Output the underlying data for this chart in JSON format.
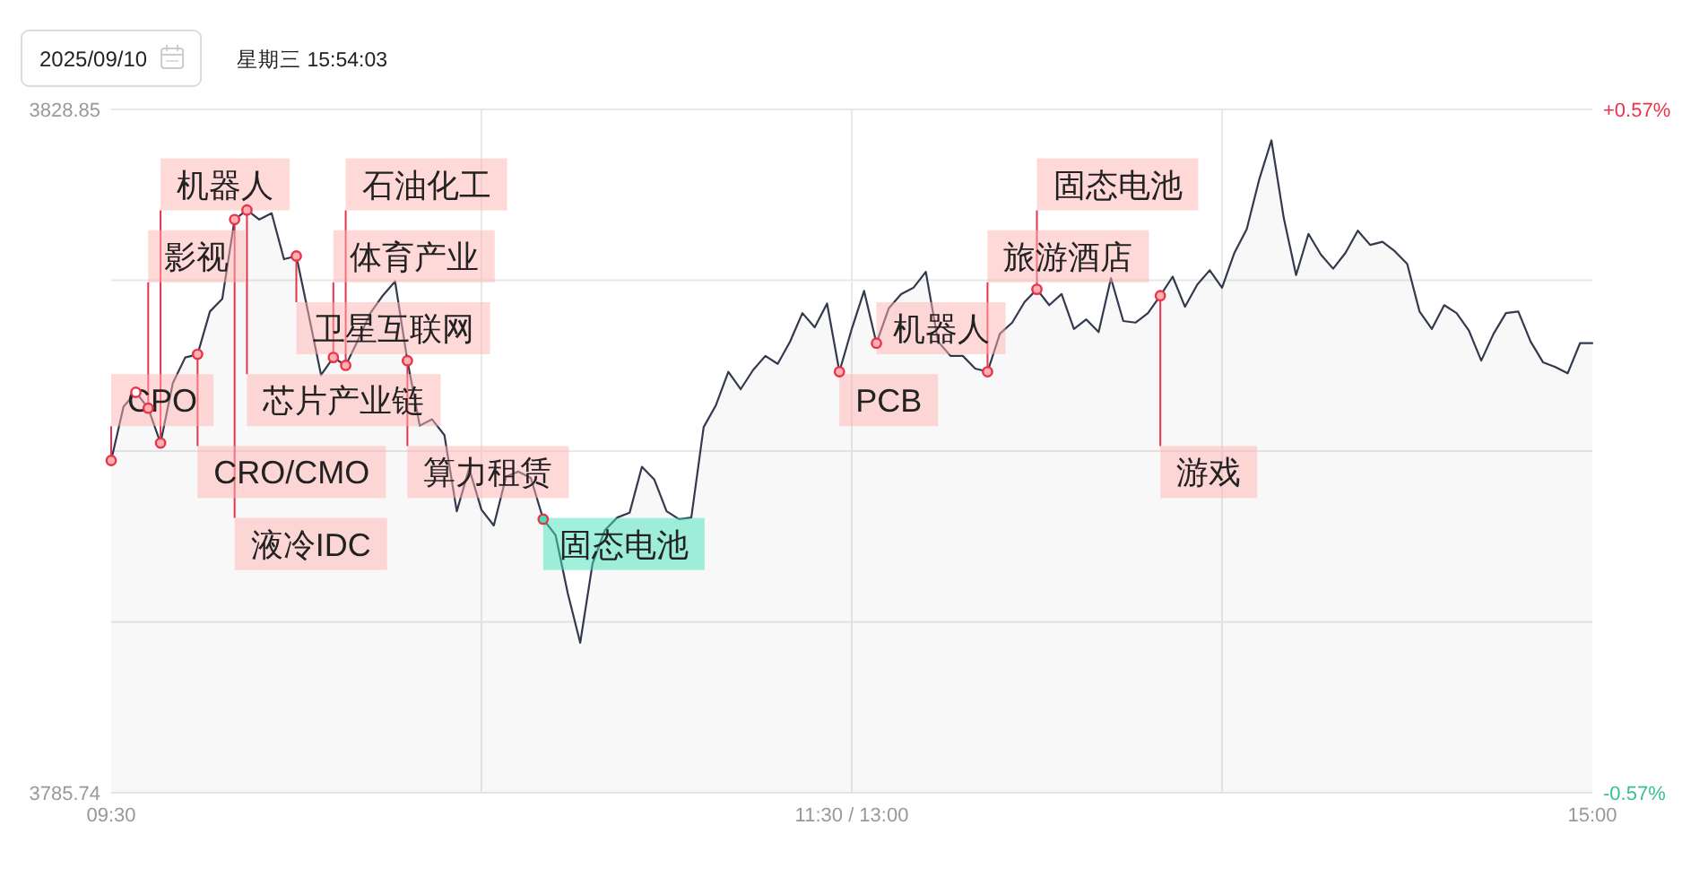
{
  "chart_data": {
    "type": "area",
    "title": "2025/09/10",
    "subtitle": "星期三 15:54:03",
    "categories": [
      "09:30",
      null,
      null,
      null,
      null,
      null,
      null,
      null,
      null,
      null,
      null,
      null,
      null,
      null,
      null,
      null,
      null,
      null,
      null,
      null,
      null,
      null,
      null,
      null,
      null,
      null,
      null,
      null,
      null,
      null,
      null,
      null,
      null,
      null,
      null,
      null,
      null,
      null,
      null,
      null,
      null,
      null,
      null,
      null,
      null,
      null,
      null,
      null,
      null,
      null,
      null,
      null,
      null,
      null,
      null,
      null,
      null,
      null,
      null,
      null,
      "11:30 / 13:00",
      null,
      null,
      null,
      null,
      null,
      null,
      null,
      null,
      null,
      null,
      null,
      null,
      null,
      null,
      null,
      null,
      null,
      null,
      null,
      null,
      null,
      null,
      null,
      null,
      null,
      null,
      null,
      null,
      null,
      null,
      null,
      null,
      null,
      null,
      null,
      null,
      null,
      null,
      null,
      null,
      null,
      null,
      null,
      null,
      null,
      null,
      null,
      null,
      null,
      null,
      null,
      null,
      null,
      null,
      null,
      null,
      null,
      null,
      null,
      "15:00"
    ],
    "ylim": [
      3785.74,
      3828.85
    ],
    "yticks": [
      3785.74,
      {
        "value": 3796.52,
        "label": null
      },
      {
        "value": 3807.3,
        "label": null
      },
      {
        "value": 3818.07,
        "label": null
      },
      3828.85
    ],
    "y2lim": [
      -0.57,
      0.57
    ],
    "y2ticks": [
      {
        "value": -0.57,
        "label": "-0.57%"
      },
      {
        "value": 0.57,
        "label": "+0.57%"
      }
    ],
    "grid": true,
    "series": [
      {
        "color": "#333a4d",
        "values": [
          3806.7,
          3810.1,
          3811.0,
          3810.0,
          3807.8,
          3811.6,
          3813.2,
          3813.4,
          3816.1,
          3816.9,
          3821.9,
          3822.5,
          3821.9,
          3822.3,
          3819.4,
          3819.6,
          3815.9,
          3812.1,
          3813.2,
          3812.7,
          3814.3,
          3816.0,
          3817.1,
          3818.0,
          3813.0,
          3808.9,
          3809.3,
          3808.3,
          3803.5,
          3806.2,
          3803.6,
          3802.6,
          3805.7,
          3806.0,
          3805.6,
          3803.0,
          3802.0,
          3798.3,
          3795.2,
          3800.2,
          3802.3,
          3803.1,
          3803.4,
          3806.3,
          3805.5,
          3803.5,
          3803.0,
          3803.1,
          3808.8,
          3810.2,
          3812.3,
          3811.2,
          3812.4,
          3813.3,
          3812.8,
          3814.2,
          3816.0,
          3815.1,
          3816.6,
          3812.3,
          3815.0,
          3817.4,
          3814.1,
          3816.3,
          3817.2,
          3817.6,
          3818.6,
          3814.2,
          3813.3,
          3813.3,
          3812.5,
          3812.3,
          3814.7,
          3815.4,
          3816.7,
          3817.5,
          3816.5,
          3817.2,
          3815.0,
          3815.6,
          3814.8,
          3818.2,
          3815.5,
          3815.4,
          3816.0,
          3817.1,
          3818.3,
          3816.4,
          3817.8,
          3818.7,
          3817.6,
          3819.8,
          3821.3,
          3824.4,
          3826.9,
          3822.0,
          3818.4,
          3821.0,
          3819.7,
          3818.8,
          3819.8,
          3821.2,
          3820.3,
          3820.5,
          3819.9,
          3819.1,
          3816.1,
          3815.0,
          3816.5,
          3816.0,
          3814.9,
          3813.0,
          3814.7,
          3816.0,
          3816.1,
          3814.2,
          3812.9,
          3812.6,
          3812.2,
          3814.1,
          3814.1
        ]
      },
      {
        "type": "scatter",
        "marker": "circle",
        "color": "#e8334a",
        "values": [
          3806.7,
          null,
          3811.0,
          3810.0,
          3807.8,
          null,
          null,
          3813.4,
          null,
          null,
          3821.9,
          3822.5,
          null,
          null,
          null,
          3819.6,
          null,
          null,
          3813.2,
          3812.7,
          null,
          null,
          null,
          null,
          3813.0,
          null,
          null,
          null,
          null,
          null,
          null,
          null,
          null,
          null,
          null,
          3803.0,
          null,
          null,
          null,
          null,
          null,
          null,
          null,
          null,
          null,
          null,
          null,
          null,
          null,
          null,
          null,
          null,
          null,
          null,
          null,
          null,
          null,
          null,
          null,
          3812.3,
          null,
          null,
          3814.1,
          null,
          null,
          null,
          null,
          null,
          null,
          null,
          null,
          3812.3,
          null,
          null,
          null,
          3817.5,
          null,
          null,
          null,
          null,
          null,
          null,
          null,
          null,
          null,
          3817.1,
          null,
          null,
          null,
          null,
          null,
          null,
          null,
          null,
          null,
          null,
          null,
          null,
          null,
          null,
          null,
          null,
          null,
          null,
          null,
          null,
          null,
          null,
          null,
          null,
          null,
          null,
          null,
          null,
          null,
          null,
          null,
          null,
          null,
          null,
          null
        ],
        "value_labels": [
          "CPO",
          null,
          null,
          "影视",
          "机器人",
          null,
          null,
          "CRO/CMO",
          null,
          null,
          "液冷IDC",
          "芯片产业链",
          null,
          null,
          null,
          "卫星互联网",
          null,
          null,
          "体育产业",
          "石油化工",
          null,
          null,
          null,
          null,
          "算力租赁",
          null,
          null,
          null,
          null,
          null,
          null,
          null,
          null,
          null,
          null,
          "固态电池",
          null,
          null,
          null,
          null,
          null,
          null,
          null,
          null,
          null,
          null,
          null,
          null,
          null,
          null,
          null,
          null,
          null,
          null,
          null,
          null,
          null,
          null,
          null,
          "PCB",
          null,
          null,
          "机器人",
          null,
          null,
          null,
          null,
          null,
          null,
          null,
          null,
          "旅游酒店",
          null,
          null,
          null,
          "固态电池",
          null,
          null,
          null,
          null,
          null,
          null,
          null,
          null,
          null,
          "游戏",
          null,
          null,
          null,
          null,
          null,
          null,
          null,
          null,
          null,
          null,
          null,
          null,
          null,
          null,
          null,
          null,
          null,
          null,
          null,
          null,
          null,
          null,
          null,
          null,
          null,
          null,
          null,
          null,
          null,
          null,
          null,
          null,
          null,
          null,
          null
        ],
        "colors": [
          "#ffb1b1",
          null,
          null,
          "#ffb1b1",
          "#ffb1b1",
          null,
          null,
          "#ffb1b1",
          null,
          null,
          "#ffb1b1",
          "#ffb1b1",
          null,
          null,
          null,
          "#ffb1b1",
          null,
          null,
          "#ffb1b1",
          "#ffb1b1",
          null,
          null,
          null,
          null,
          "#ffb1b1",
          null,
          null,
          null,
          null,
          null,
          null,
          null,
          null,
          null,
          null,
          "#41e1b9",
          null,
          null,
          null,
          null,
          null,
          null,
          null,
          null,
          null,
          null,
          null,
          null,
          null,
          null,
          null,
          null,
          null,
          null,
          null,
          null,
          null,
          null,
          null,
          "#ffb1b1",
          null,
          null,
          "#ffb1b1",
          null,
          null,
          null,
          null,
          null,
          null,
          null,
          null,
          "#ffb1b1",
          null,
          null,
          null,
          "#ffb1b1",
          null,
          null,
          null,
          null,
          null,
          null,
          null,
          null,
          null,
          "#ffb1b1",
          null,
          null,
          null,
          null,
          null,
          null,
          null,
          null,
          null,
          null,
          null,
          null,
          null,
          null,
          null,
          null,
          null,
          null,
          null,
          null,
          null,
          null,
          null,
          null,
          null,
          null,
          null,
          null,
          null,
          null,
          null,
          null,
          null,
          null,
          null
        ]
      }
    ]
  }
}
